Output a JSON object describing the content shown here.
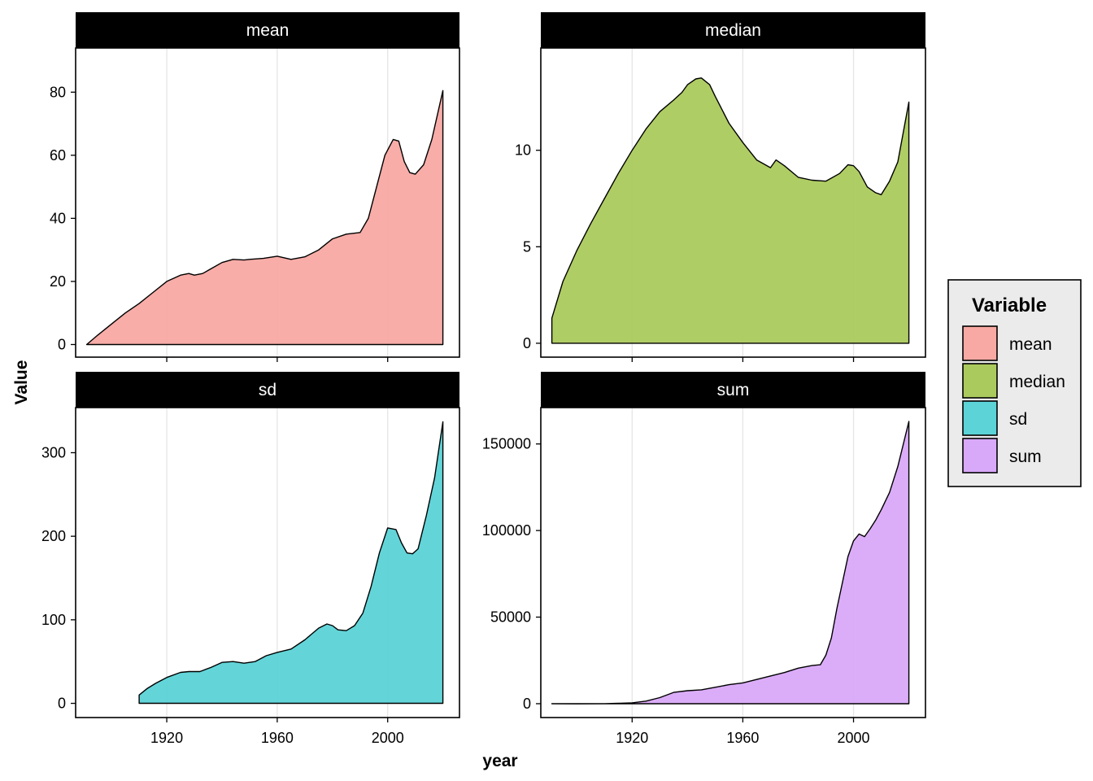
{
  "chart_data": {
    "type": "area",
    "xlabel": "year",
    "ylabel": "Value",
    "grid": "vertical major gridlines only",
    "legend": {
      "title": "Variable",
      "placement": "right",
      "entries": [
        "mean",
        "median",
        "sd",
        "sum"
      ]
    },
    "xlim": [
      1887,
      2026
    ],
    "x_ticks": [
      1920,
      1960,
      2000
    ],
    "panels": [
      {
        "name": "mean",
        "color": "#F8A9A3",
        "ylim": [
          -4,
          94
        ],
        "y_ticks": [
          0,
          20,
          40,
          60,
          80
        ],
        "x": [
          1891,
          1895,
          1900,
          1905,
          1910,
          1915,
          1920,
          1925,
          1928,
          1930,
          1933,
          1936,
          1940,
          1944,
          1948,
          1950,
          1955,
          1960,
          1965,
          1970,
          1975,
          1980,
          1985,
          1990,
          1993,
          1996,
          1999,
          2002,
          2004,
          2006,
          2008,
          2010,
          2013,
          2016,
          2020
        ],
        "values": [
          0,
          3,
          6.5,
          10,
          13,
          16.5,
          20,
          22,
          22.5,
          22,
          22.5,
          24,
          26,
          27,
          26.8,
          27,
          27.3,
          28,
          27,
          27.8,
          30,
          33.5,
          35,
          35.5,
          40,
          50,
          60,
          65,
          64.5,
          58,
          54.5,
          54,
          57,
          65,
          80.5
        ]
      },
      {
        "name": "median",
        "color": "#ABCA5D",
        "ylim": [
          -0.72,
          15.3
        ],
        "y_ticks": [
          0,
          5,
          10
        ],
        "x": [
          1891,
          1895,
          1900,
          1905,
          1910,
          1915,
          1920,
          1925,
          1930,
          1935,
          1938,
          1940,
          1943,
          1945,
          1948,
          1950,
          1955,
          1960,
          1965,
          1970,
          1972,
          1975,
          1980,
          1985,
          1990,
          1995,
          1998,
          2000,
          2002,
          2005,
          2008,
          2010,
          2013,
          2016,
          2020
        ],
        "values": [
          1.3,
          3.2,
          4.8,
          6.2,
          7.5,
          8.8,
          10,
          11.1,
          12,
          12.6,
          13,
          13.4,
          13.7,
          13.75,
          13.4,
          12.8,
          11.4,
          10.4,
          9.5,
          9.1,
          9.5,
          9.2,
          8.6,
          8.45,
          8.4,
          8.8,
          9.25,
          9.2,
          8.9,
          8.1,
          7.8,
          7.7,
          8.4,
          9.4,
          12.5
        ]
      },
      {
        "name": "sd",
        "color": "#5BD3D7",
        "ylim": [
          -17,
          354
        ],
        "y_ticks": [
          0,
          100,
          200,
          300
        ],
        "x": [
          1910,
          1913,
          1916,
          1920,
          1925,
          1928,
          1932,
          1936,
          1940,
          1944,
          1948,
          1952,
          1956,
          1960,
          1965,
          1970,
          1975,
          1978,
          1980,
          1982,
          1985,
          1988,
          1991,
          1994,
          1997,
          2000,
          2003,
          2005,
          2007,
          2009,
          2011,
          2014,
          2017,
          2020
        ],
        "values": [
          10,
          18,
          24,
          31,
          37,
          38,
          38,
          43,
          49,
          50,
          48,
          50,
          57,
          61,
          65,
          76,
          90,
          95,
          93,
          88,
          87,
          93,
          108,
          140,
          180,
          210,
          208,
          192,
          180,
          179,
          185,
          225,
          270,
          337
        ]
      },
      {
        "name": "sum",
        "color": "#D9A9F9",
        "ylim": [
          -8000,
          171000
        ],
        "y_ticks": [
          0,
          50000,
          100000,
          150000
        ],
        "tick_labels": [
          "0",
          "50000",
          "100000",
          "150000"
        ],
        "x": [
          1891,
          1900,
          1910,
          1915,
          1920,
          1925,
          1930,
          1935,
          1940,
          1945,
          1950,
          1955,
          1960,
          1965,
          1970,
          1975,
          1980,
          1985,
          1988,
          1990,
          1992,
          1994,
          1996,
          1998,
          2000,
          2002,
          2004,
          2006,
          2008,
          2010,
          2013,
          2016,
          2020
        ],
        "values": [
          0,
          -100,
          0,
          200,
          500,
          1500,
          3500,
          6500,
          7500,
          8000,
          9500,
          11000,
          12000,
          14000,
          16000,
          18000,
          20500,
          22000,
          22500,
          28000,
          38000,
          55000,
          70000,
          85000,
          94000,
          98000,
          96500,
          101000,
          106000,
          112000,
          122000,
          137000,
          163000
        ]
      }
    ]
  }
}
